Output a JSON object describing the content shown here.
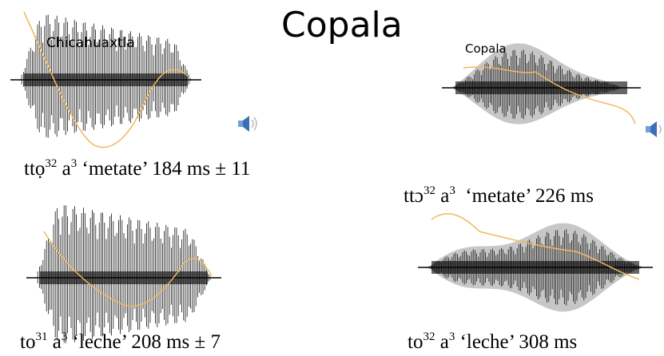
{
  "title": "Copala",
  "labels": {
    "left": "Chicahuaxtla",
    "right": "Copala"
  },
  "captions": [
    {
      "parts": [
        "ttọ",
        "32",
        " a",
        "3",
        " ‘metate’ 184 ms ± 11"
      ]
    },
    {
      "parts": [
        "ttɔ",
        "32",
        " a",
        "3",
        "  ‘metate’ 226 ms"
      ]
    },
    {
      "parts": [
        "to",
        "31",
        " a",
        "3",
        " ‘leche’ 208 ms ± 7"
      ]
    },
    {
      "parts": [
        "to",
        "32",
        " a",
        "3",
        " ‘leche’ 308 ms"
      ]
    }
  ]
}
